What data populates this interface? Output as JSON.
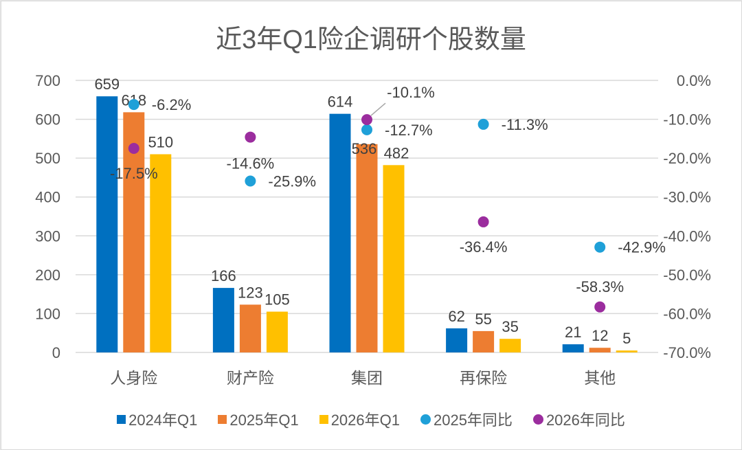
{
  "chart_data": {
    "type": "bar",
    "title": "近3年Q1险企调研个股数量",
    "categories": [
      "人身险",
      "财产险",
      "集团",
      "再保险",
      "其他"
    ],
    "series": [
      {
        "name": "2024年Q1",
        "kind": "bar",
        "axis": "left",
        "color": "#0070c0",
        "values": [
          659,
          166,
          614,
          62,
          21
        ],
        "labels": [
          "659",
          "166",
          "614",
          "62",
          "21"
        ]
      },
      {
        "name": "2025年Q1",
        "kind": "bar",
        "axis": "left",
        "color": "#ed7d31",
        "values": [
          618,
          123,
          536,
          55,
          12
        ],
        "labels": [
          "618",
          "123",
          "536",
          "55",
          "12"
        ]
      },
      {
        "name": "2026年Q1",
        "kind": "bar",
        "axis": "left",
        "color": "#ffc000",
        "values": [
          510,
          105,
          482,
          35,
          5
        ],
        "labels": [
          "510",
          "105",
          "482",
          "35",
          "5"
        ]
      },
      {
        "name": "2025年同比",
        "kind": "scatter",
        "axis": "right",
        "color": "#1fa0d8",
        "values": [
          -6.2,
          -25.9,
          -12.7,
          -11.3,
          -42.9
        ],
        "labels": [
          "-6.2%",
          "-25.9%",
          "-12.7%",
          "-11.3%",
          "-42.9%"
        ]
      },
      {
        "name": "2026年同比",
        "kind": "scatter",
        "axis": "right",
        "color": "#9b2d9e",
        "values": [
          -17.5,
          -14.6,
          -10.1,
          -36.4,
          -58.3
        ],
        "labels": [
          "-17.5%",
          "-14.6%",
          "-10.1%",
          "-36.4%",
          "-58.3%"
        ]
      }
    ],
    "y_left": {
      "range": [
        0,
        700
      ],
      "ticks": [
        "0",
        "100",
        "200",
        "300",
        "400",
        "500",
        "600",
        "700"
      ],
      "tick_values": [
        0,
        100,
        200,
        300,
        400,
        500,
        600,
        700
      ]
    },
    "y_right": {
      "range": [
        -70,
        0
      ],
      "ticks": [
        "-70.0%",
        "-60.0%",
        "-50.0%",
        "-40.0%",
        "-30.0%",
        "-20.0%",
        "-10.0%",
        "0.0%"
      ],
      "tick_values": [
        -70,
        -60,
        -50,
        -40,
        -30,
        -20,
        -10,
        0
      ]
    },
    "grid": true,
    "legend_position": "bottom",
    "xlabel": "",
    "ylabel": ""
  }
}
